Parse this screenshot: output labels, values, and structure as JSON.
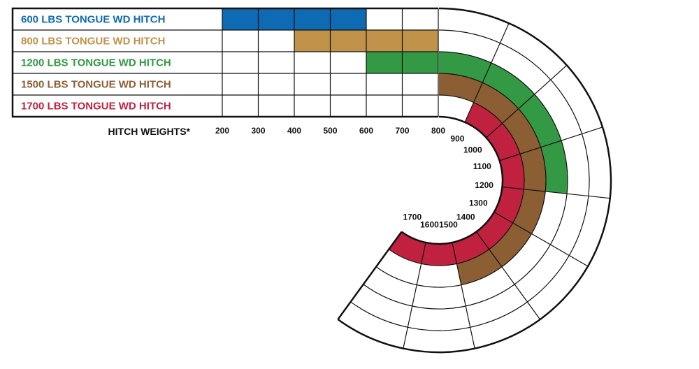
{
  "chart_data": {
    "type": "range-bar",
    "axis_label": "HITCH WEIGHTS*",
    "ticks": [
      200,
      300,
      400,
      500,
      600,
      700,
      800,
      900,
      1000,
      1100,
      1200,
      1300,
      1400,
      1500,
      1600,
      1700
    ],
    "range": [
      200,
      1700
    ],
    "grid": true,
    "series": [
      {
        "label": "600 LBS TONGUE WD HITCH",
        "color": "#0d6ab3",
        "range": [
          200,
          600
        ]
      },
      {
        "label": "800 LBS TONGUE WD HITCH",
        "color": "#c0924a",
        "range": [
          400,
          800
        ]
      },
      {
        "label": "1200 LBS TONGUE WD HITCH",
        "color": "#339944",
        "range": [
          600,
          1200
        ]
      },
      {
        "label": "1500 LBS TONGUE WD HITCH",
        "color": "#8b5e34",
        "range": [
          800,
          1500
        ]
      },
      {
        "label": "1700 LBS TONGUE WD HITCH",
        "color": "#c0213f",
        "range": [
          900,
          1700
        ]
      }
    ]
  }
}
